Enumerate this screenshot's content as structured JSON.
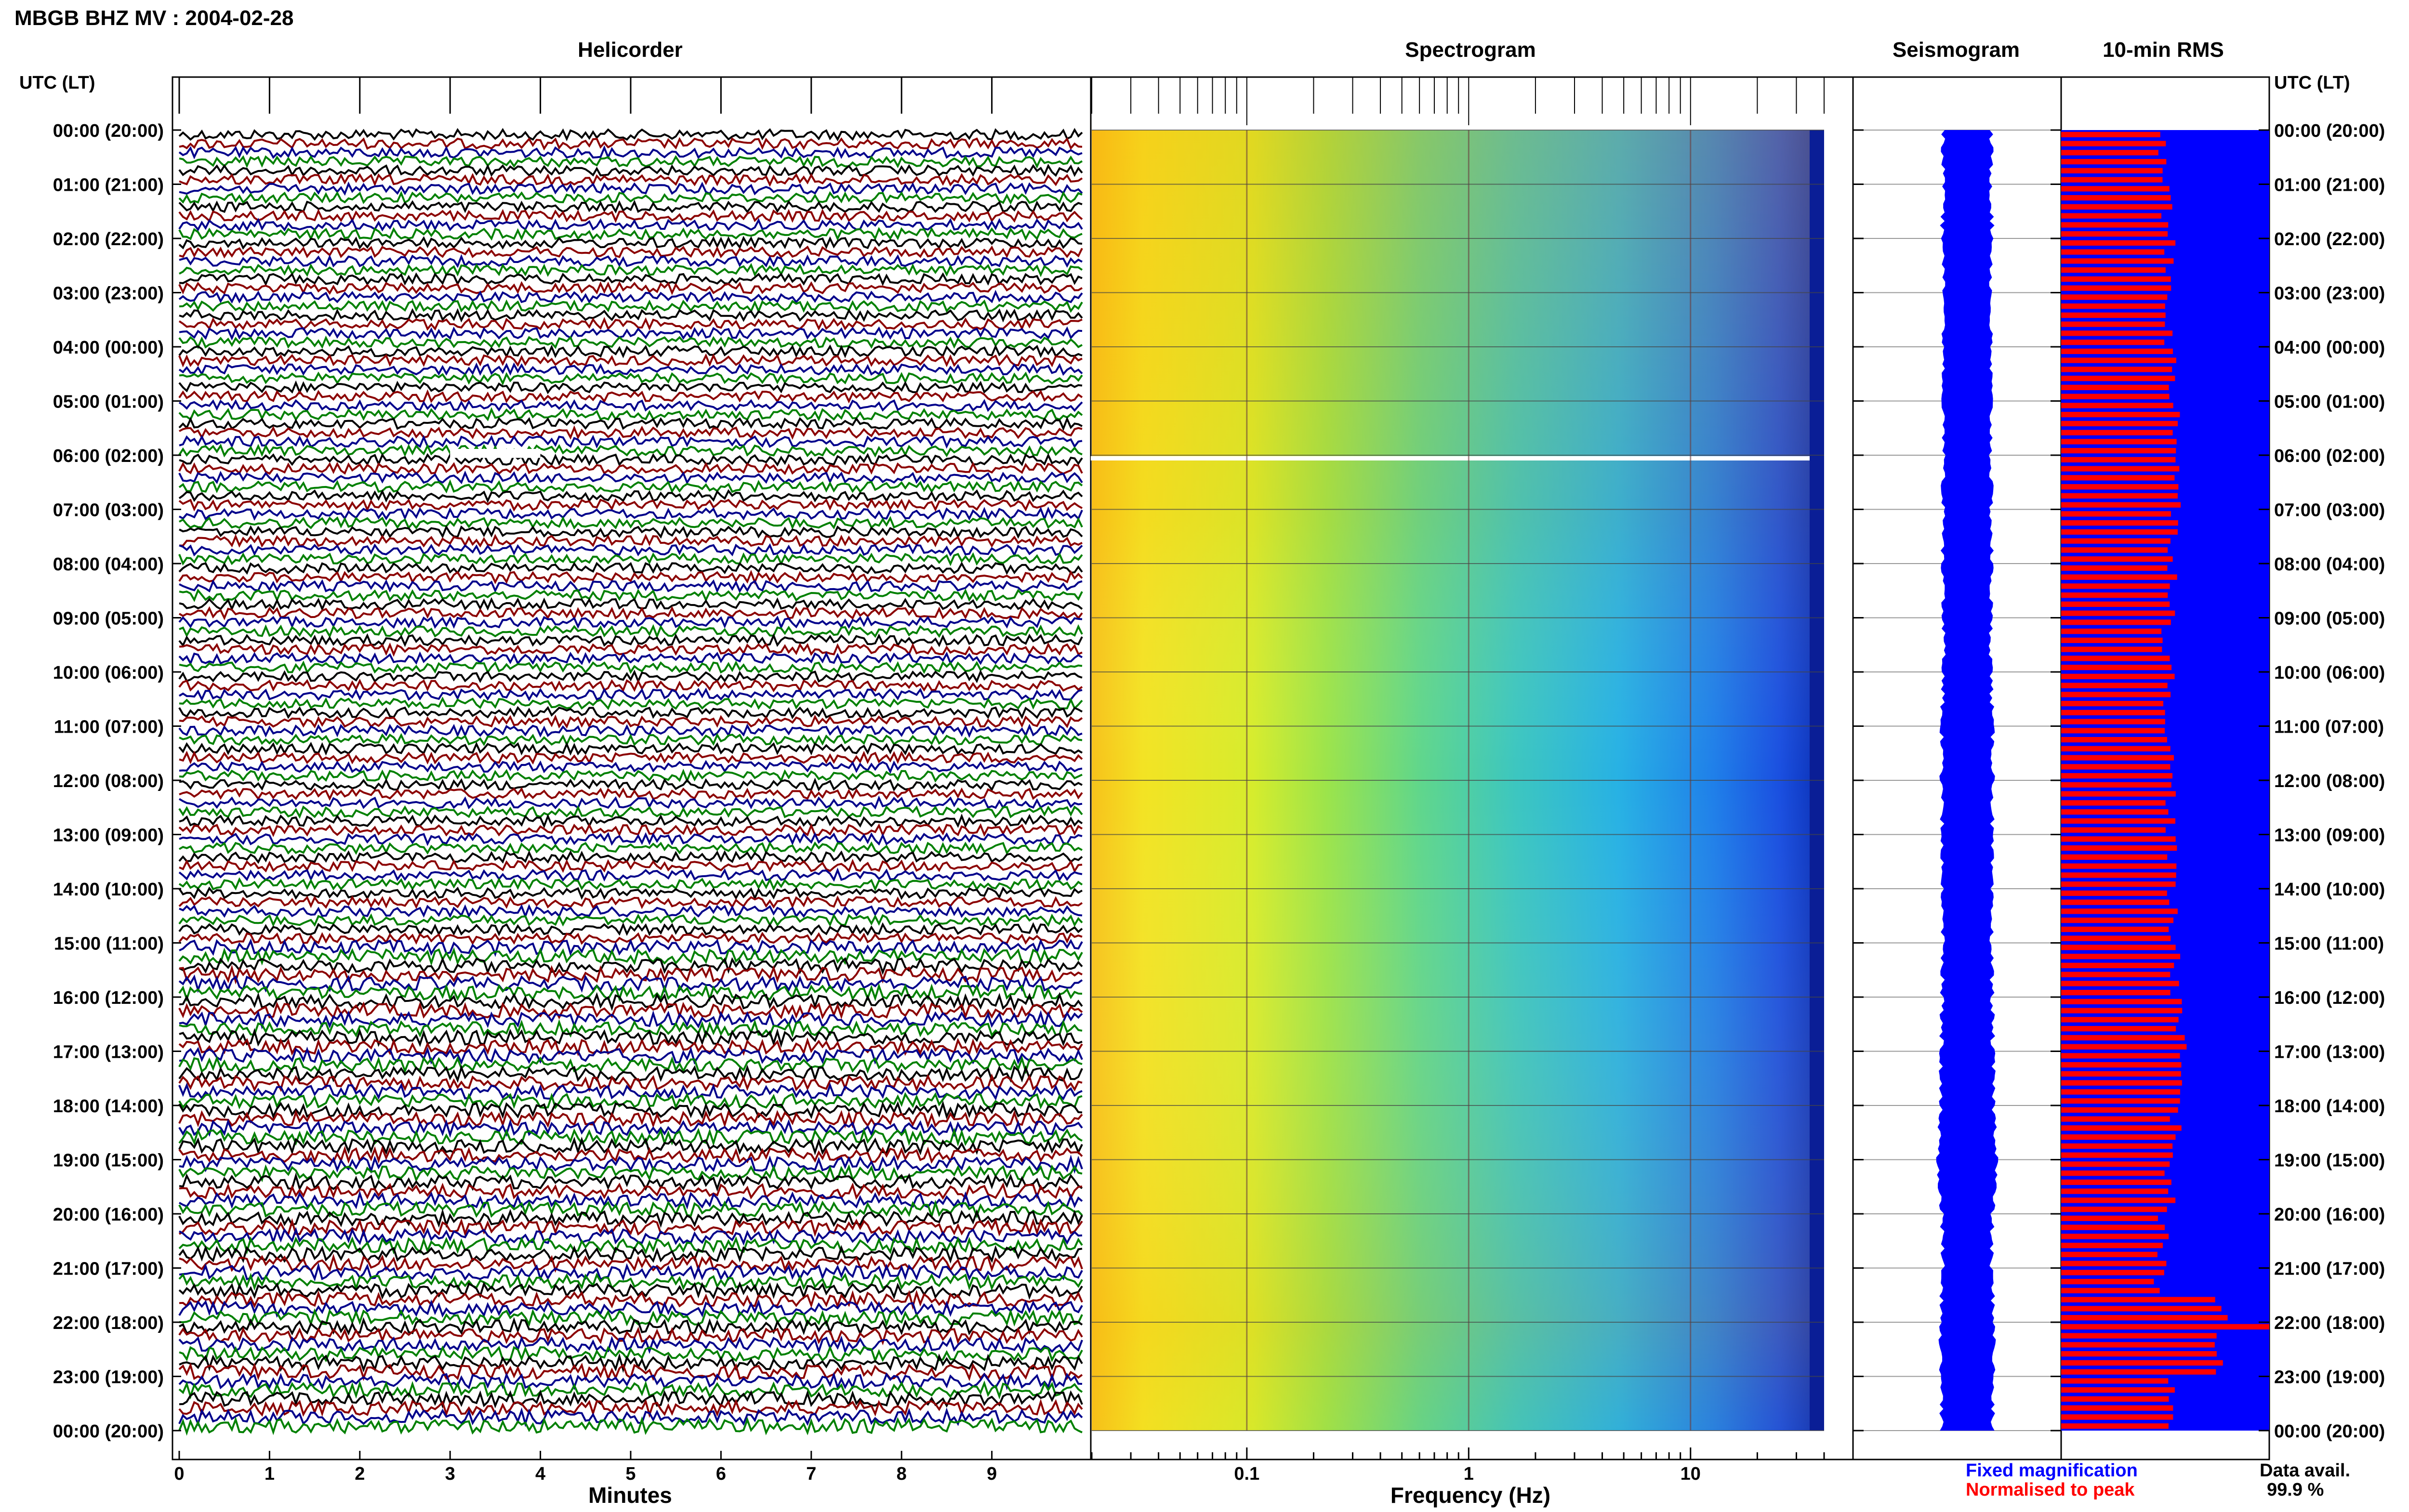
{
  "header": {
    "station": "MBGB BHZ MV : 2004-02-28"
  },
  "panels": {
    "helicorder": "Helicorder",
    "spectrogram": "Spectrogram",
    "seismogram": "Seismogram",
    "rms": "10-min RMS"
  },
  "axes": {
    "utc_lt": "UTC (LT)",
    "minutes": "Minutes",
    "frequency": "Frequency (Hz)"
  },
  "legend": {
    "fixed": "Fixed magnification",
    "normalised": "Normalised to peak",
    "data_avail_label": "Data avail.",
    "data_avail_value": "99.9 %"
  },
  "colors": {
    "trace_cycle": [
      "#000000",
      "#8b0000",
      "#00008b",
      "#008000"
    ],
    "seismogram": "#0000ff",
    "rms_fixed": "#0000ff",
    "rms_normalised": "#ff0000"
  },
  "chart_data": [
    {
      "type": "line",
      "title": "Helicorder",
      "xlabel": "Minutes",
      "ylabel": "UTC (LT)",
      "xlim": [
        0,
        10
      ],
      "x_ticks": [
        "0",
        "1",
        "2",
        "3",
        "4",
        "5",
        "6",
        "7",
        "8",
        "9"
      ],
      "rows_per_hour": 6,
      "hours": 24,
      "y_tick_labels": [
        "00:00 (20:00)",
        "01:00 (21:00)",
        "02:00 (22:00)",
        "03:00 (23:00)",
        "04:00 (00:00)",
        "05:00 (01:00)",
        "06:00 (02:00)",
        "07:00 (03:00)",
        "08:00 (04:00)",
        "09:00 (05:00)",
        "10:00 (06:00)",
        "11:00 (07:00)",
        "12:00 (08:00)",
        "13:00 (09:00)",
        "14:00 (10:00)",
        "15:00 (11:00)",
        "16:00 (12:00)",
        "17:00 (13:00)",
        "18:00 (14:00)",
        "19:00 (15:00)",
        "20:00 (16:00)",
        "21:00 (17:00)",
        "22:00 (18:00)",
        "23:00 (19:00)",
        "00:00 (20:00)"
      ],
      "gaps": [
        {
          "start": "06:00",
          "minutes": [
            3,
            4
          ]
        }
      ]
    },
    {
      "type": "heatmap",
      "title": "Spectrogram",
      "xlabel": "Frequency (Hz)",
      "xscale": "log",
      "x_ticks": [
        "0.1",
        "1",
        "10"
      ],
      "xlim": [
        0.02,
        40
      ],
      "gap_at": "06:00"
    },
    {
      "type": "line",
      "title": "Seismogram",
      "values_rel": [
        1.0,
        1.0,
        1.05,
        0.98,
        0.97,
        1.0,
        0.99,
        1.0,
        1.02,
        0.98,
        1.0,
        1.05,
        1.1,
        1.03,
        1.0,
        1.02,
        1.05,
        1.08,
        1.12,
        1.3,
        1.05,
        1.0,
        1.15,
        1.1,
        1.05
      ]
    },
    {
      "type": "bar",
      "title": "10-min RMS",
      "series": [
        {
          "name": "Fixed magnification",
          "values": [
            1,
            1,
            1,
            1,
            1,
            1,
            1,
            1,
            1,
            1,
            1,
            1,
            1,
            1,
            1,
            1,
            1,
            1,
            1,
            1,
            1,
            1,
            1,
            1
          ]
        },
        {
          "name": "Normalised to peak",
          "values": [
            0.49,
            0.51,
            0.52,
            0.52,
            0.53,
            0.56,
            0.56,
            0.54,
            0.54,
            0.51,
            0.52,
            0.52,
            0.53,
            0.53,
            0.53,
            0.55,
            0.58,
            0.58,
            0.55,
            0.52,
            0.49,
            0.47,
            0.75,
            0.52
          ]
        }
      ]
    }
  ]
}
